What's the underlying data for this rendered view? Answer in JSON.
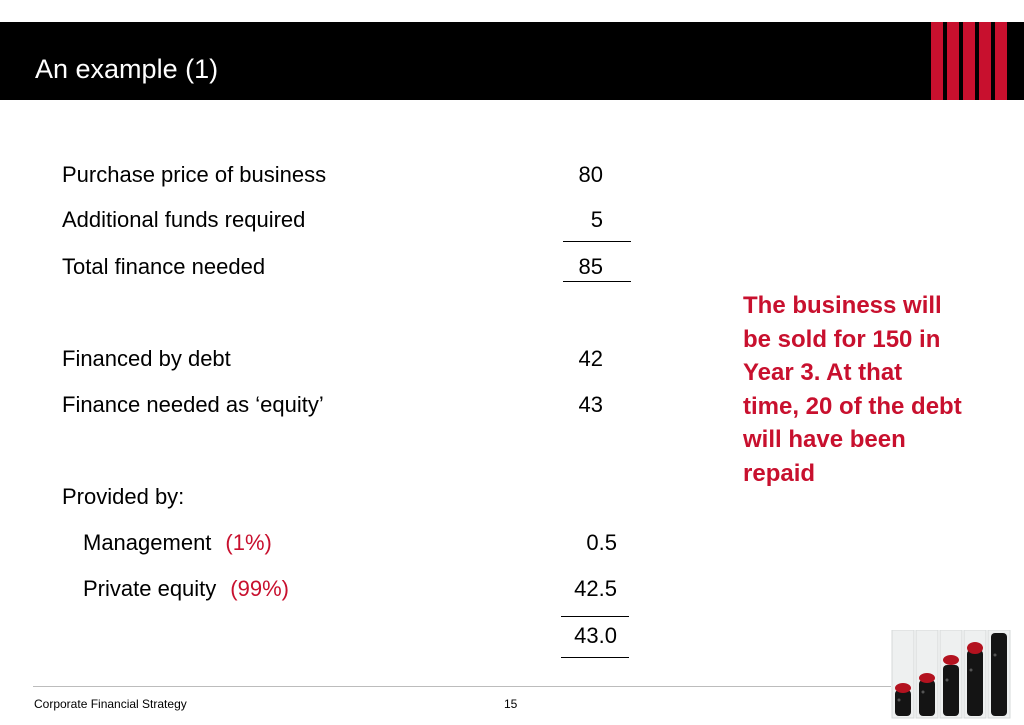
{
  "slide": {
    "title": "An example (1)",
    "accent_color": "#c8102e"
  },
  "table": {
    "purchase_price": {
      "label": "Purchase price of business",
      "value": "80"
    },
    "additional_funds": {
      "label": "Additional funds required",
      "value": "5"
    },
    "total_finance": {
      "label": "Total finance needed",
      "value": "85"
    },
    "financed_by_debt": {
      "label": "Financed by debt",
      "value": "42"
    },
    "finance_equity": {
      "label": "Finance needed as ‘equity’",
      "value": "43"
    },
    "provided_by": {
      "label": "Provided by:"
    },
    "management": {
      "label": "Management",
      "pct": "(1%)",
      "value": "0.5"
    },
    "private_equity": {
      "label": "Private equity",
      "pct": "(99%)",
      "value": "42.5"
    },
    "equity_total": {
      "value": "43.0"
    }
  },
  "note": {
    "text": "The business will be sold for 150 in Year 3. At that time, 20 of the debt will have been repaid"
  },
  "footer": {
    "course": "Corporate Financial Strategy",
    "page_number": "15"
  },
  "decor": {
    "image": "jars-of-beads-image"
  }
}
